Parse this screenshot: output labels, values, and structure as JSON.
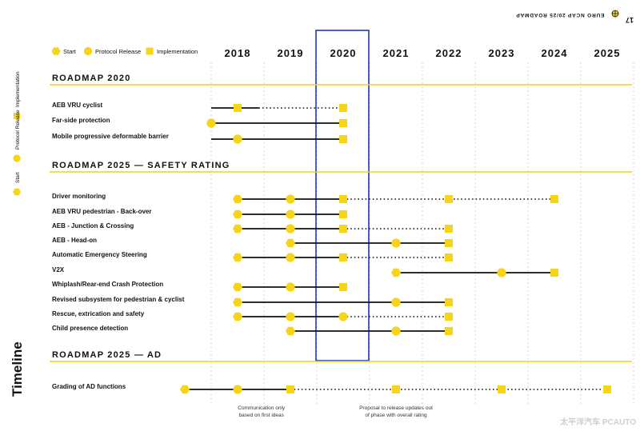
{
  "page": {
    "header": "EURO NCAP 20/25 ROADMAP",
    "page_number": "17",
    "side_title": "Timeline",
    "side_legend": [
      "Start",
      "Protocol Release",
      "Implementation"
    ],
    "watermark": "太平洋汽车 PCAUTO"
  },
  "colors": {
    "marker": "#f7d417",
    "rule": "#f2d21a",
    "text": "#111111",
    "highlight_box": "#1f3aa8",
    "grid": "#cccccc"
  },
  "chart_data": {
    "type": "timeline",
    "years": [
      "2018",
      "2019",
      "2020",
      "2021",
      "2022",
      "2023",
      "2024",
      "2025"
    ],
    "highlighted_year": "2020",
    "legend": [
      {
        "label": "Start",
        "marker": "hexagon"
      },
      {
        "label": "Protocol Release",
        "marker": "circle"
      },
      {
        "label": "Implementation",
        "marker": "square"
      }
    ],
    "sections": [
      {
        "title": "ROADMAP 2020",
        "rows": [
          {
            "label": "AEB VRU cyclist",
            "markers": [
              {
                "year": 2018.0,
                "type": "square"
              },
              {
                "year": 2020.0,
                "type": "square"
              }
            ],
            "segments": [
              {
                "from": 2017.5,
                "to": 2018.4,
                "style": "solid"
              },
              {
                "from": 2018.4,
                "to": 2020.0,
                "style": "dotted"
              }
            ]
          },
          {
            "label": "Far-side protection",
            "markers": [
              {
                "year": 2017.5,
                "type": "circle"
              },
              {
                "year": 2020.0,
                "type": "square"
              }
            ],
            "segments": [
              {
                "from": 2017.5,
                "to": 2020.0,
                "style": "solid"
              }
            ]
          },
          {
            "label": "Mobile progressive deformable barrier",
            "markers": [
              {
                "year": 2018.0,
                "type": "circle"
              },
              {
                "year": 2020.0,
                "type": "square"
              }
            ],
            "segments": [
              {
                "from": 2017.5,
                "to": 2020.0,
                "style": "solid"
              }
            ]
          }
        ]
      },
      {
        "title": "ROADMAP 2025 — SAFETY RATING",
        "rows": [
          {
            "label": "Driver monitoring",
            "markers": [
              {
                "year": 2018.0,
                "type": "hexagon"
              },
              {
                "year": 2019.0,
                "type": "circle"
              },
              {
                "year": 2020.0,
                "type": "square"
              },
              {
                "year": 2022.0,
                "type": "square"
              },
              {
                "year": 2024.0,
                "type": "square"
              }
            ],
            "segments": [
              {
                "from": 2018.0,
                "to": 2020.0,
                "style": "solid"
              },
              {
                "from": 2020.0,
                "to": 2024.0,
                "style": "dotted"
              }
            ]
          },
          {
            "label": "AEB VRU pedestrian - Back-over",
            "markers": [
              {
                "year": 2018.0,
                "type": "hexagon"
              },
              {
                "year": 2019.0,
                "type": "circle"
              },
              {
                "year": 2020.0,
                "type": "square"
              }
            ],
            "segments": [
              {
                "from": 2018.0,
                "to": 2020.0,
                "style": "solid"
              }
            ]
          },
          {
            "label": "AEB - Junction & Crossing",
            "markers": [
              {
                "year": 2018.0,
                "type": "hexagon"
              },
              {
                "year": 2019.0,
                "type": "circle"
              },
              {
                "year": 2020.0,
                "type": "square"
              },
              {
                "year": 2022.0,
                "type": "square"
              }
            ],
            "segments": [
              {
                "from": 2018.0,
                "to": 2020.0,
                "style": "solid"
              },
              {
                "from": 2020.0,
                "to": 2022.0,
                "style": "dotted"
              }
            ]
          },
          {
            "label": "AEB - Head-on",
            "markers": [
              {
                "year": 2019.0,
                "type": "hexagon"
              },
              {
                "year": 2021.0,
                "type": "circle"
              },
              {
                "year": 2022.0,
                "type": "square"
              }
            ],
            "segments": [
              {
                "from": 2019.0,
                "to": 2022.0,
                "style": "solid"
              }
            ]
          },
          {
            "label": "Automatic Emergency Steering",
            "markers": [
              {
                "year": 2018.0,
                "type": "hexagon"
              },
              {
                "year": 2019.0,
                "type": "circle"
              },
              {
                "year": 2020.0,
                "type": "square"
              },
              {
                "year": 2022.0,
                "type": "square"
              }
            ],
            "segments": [
              {
                "from": 2018.0,
                "to": 2020.0,
                "style": "solid"
              },
              {
                "from": 2020.0,
                "to": 2022.0,
                "style": "dotted"
              }
            ]
          },
          {
            "label": "V2X",
            "markers": [
              {
                "year": 2021.0,
                "type": "hexagon"
              },
              {
                "year": 2023.0,
                "type": "circle"
              },
              {
                "year": 2024.0,
                "type": "square"
              }
            ],
            "segments": [
              {
                "from": 2021.0,
                "to": 2024.0,
                "style": "solid"
              }
            ]
          },
          {
            "label": "Whiplash/Rear-end Crash Protection",
            "markers": [
              {
                "year": 2018.0,
                "type": "hexagon"
              },
              {
                "year": 2019.0,
                "type": "circle"
              },
              {
                "year": 2020.0,
                "type": "square"
              }
            ],
            "segments": [
              {
                "from": 2018.0,
                "to": 2020.0,
                "style": "solid"
              }
            ]
          },
          {
            "label": "Revised subsystem for pedestrian & cyclist",
            "markers": [
              {
                "year": 2018.0,
                "type": "hexagon"
              },
              {
                "year": 2021.0,
                "type": "circle"
              },
              {
                "year": 2022.0,
                "type": "square"
              }
            ],
            "segments": [
              {
                "from": 2018.0,
                "to": 2022.0,
                "style": "solid"
              }
            ]
          },
          {
            "label": "Rescue, extrication and safety",
            "markers": [
              {
                "year": 2018.0,
                "type": "hexagon"
              },
              {
                "year": 2019.0,
                "type": "circle"
              },
              {
                "year": 2020.0,
                "type": "circle"
              },
              {
                "year": 2022.0,
                "type": "square"
              }
            ],
            "segments": [
              {
                "from": 2018.0,
                "to": 2020.0,
                "style": "solid"
              },
              {
                "from": 2020.0,
                "to": 2022.0,
                "style": "dotted"
              }
            ]
          },
          {
            "label": "Child presence detection",
            "markers": [
              {
                "year": 2019.0,
                "type": "hexagon"
              },
              {
                "year": 2021.0,
                "type": "circle"
              },
              {
                "year": 2022.0,
                "type": "square"
              }
            ],
            "segments": [
              {
                "from": 2019.0,
                "to": 2022.0,
                "style": "solid"
              }
            ]
          }
        ]
      },
      {
        "title": "ROADMAP 2025 — AD",
        "rows": [
          {
            "label": "Grading of AD functions",
            "markers": [
              {
                "year": 2017.0,
                "type": "hexagon"
              },
              {
                "year": 2018.0,
                "type": "circle"
              },
              {
                "year": 2019.0,
                "type": "square"
              },
              {
                "year": 2021.0,
                "type": "square"
              },
              {
                "year": 2023.0,
                "type": "square"
              },
              {
                "year": 2025.0,
                "type": "square"
              }
            ],
            "segments": [
              {
                "from": 2017.0,
                "to": 2019.0,
                "style": "solid"
              },
              {
                "from": 2019.0,
                "to": 2025.0,
                "style": "dotted"
              }
            ]
          }
        ]
      }
    ],
    "annotations": [
      {
        "text": "Communication only\nbased on first ideas",
        "year": 2018.45
      },
      {
        "text": "Proposal to release updates out\nof phase with overall rating",
        "year": 2021.0
      }
    ]
  }
}
